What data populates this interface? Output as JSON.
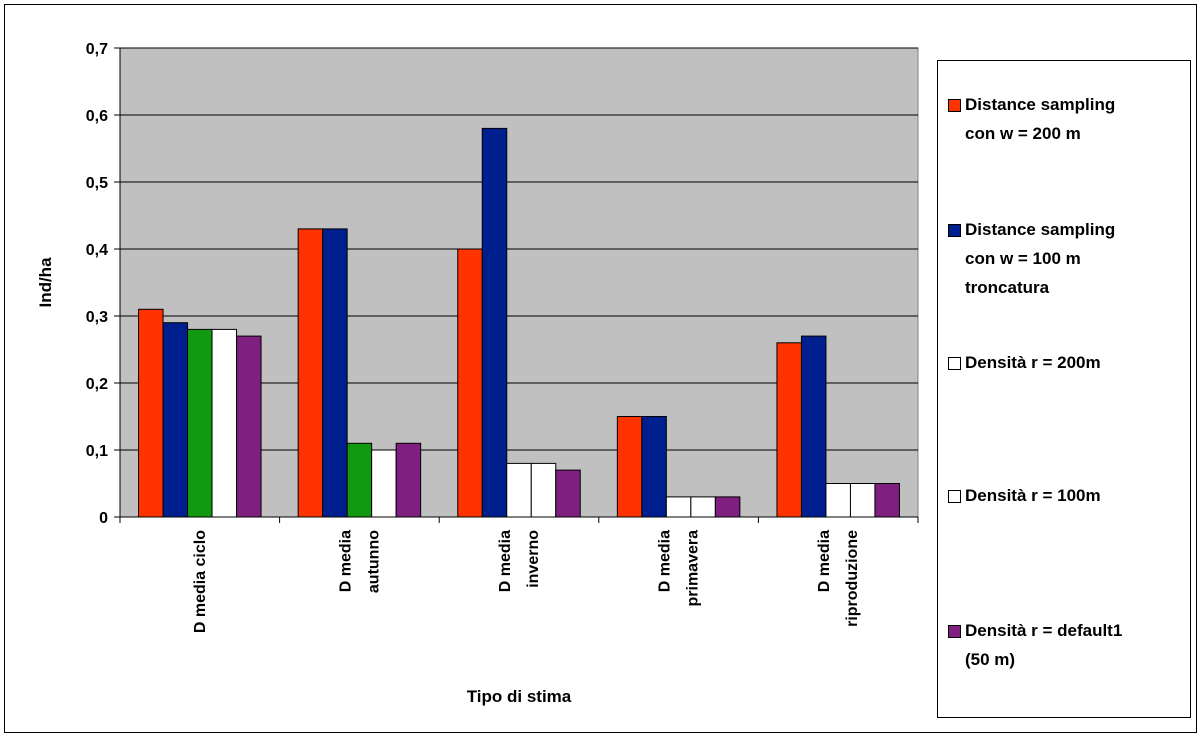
{
  "chart_data": {
    "type": "bar",
    "title": "",
    "xlabel": "Tipo di stima",
    "ylabel": "Ind/ha",
    "ylim": [
      0,
      0.7
    ],
    "yticks": [
      "0",
      "0,1",
      "0,2",
      "0,3",
      "0,4",
      "0,5",
      "0,6",
      "0,7"
    ],
    "categories": [
      "D media ciclo",
      "D media\nautunno",
      "D media\ninverno",
      "D media\nprimavera",
      "D media\nriproduzione"
    ],
    "series": [
      {
        "name": "Distance sampling\ncon w = 200 m",
        "color": "#ff3300",
        "values": [
          0.31,
          0.43,
          0.4,
          0.15,
          0.26
        ]
      },
      {
        "name": "Distance sampling\ncon w = 100 m\ntroncatura",
        "color": "#001f8f",
        "values": [
          0.29,
          0.43,
          0.58,
          0.15,
          0.27
        ]
      },
      {
        "name": "Densità r = 200m",
        "color": "#ffffff",
        "values": [
          0.28,
          0.11,
          0.08,
          0.03,
          0.05
        ],
        "bar_colors": [
          "#119911",
          "#119911",
          "#ffffff",
          "#ffffff",
          "#ffffff"
        ]
      },
      {
        "name": "Densità r = 100m",
        "color": "#ffffff",
        "values": [
          0.28,
          0.1,
          0.08,
          0.03,
          0.05
        ]
      },
      {
        "name": "Densità r = default1\n(50 m)",
        "color": "#7f1f7f",
        "values": [
          0.27,
          0.11,
          0.07,
          0.03,
          0.05
        ]
      }
    ],
    "plot_background": "#c0c0c0",
    "grid": true,
    "legend_position": "right"
  }
}
